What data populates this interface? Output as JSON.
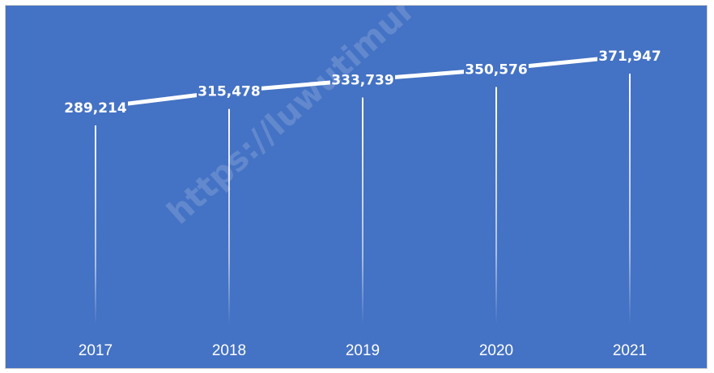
{
  "watermark": "https://luwutimur",
  "chart_data": {
    "type": "line",
    "title": "",
    "xlabel": "",
    "ylabel": "",
    "categories": [
      "2017",
      "2018",
      "2019",
      "2020",
      "2021"
    ],
    "values": [
      289214,
      315478,
      333739,
      350576,
      371947
    ],
    "value_labels": [
      "289,214",
      "315,478",
      "333,739",
      "350,576",
      "371,947"
    ],
    "grid": false,
    "legend": "none",
    "colors": {
      "background": "#4472c4",
      "line": "#ffffff",
      "text": "#ffffff"
    }
  }
}
